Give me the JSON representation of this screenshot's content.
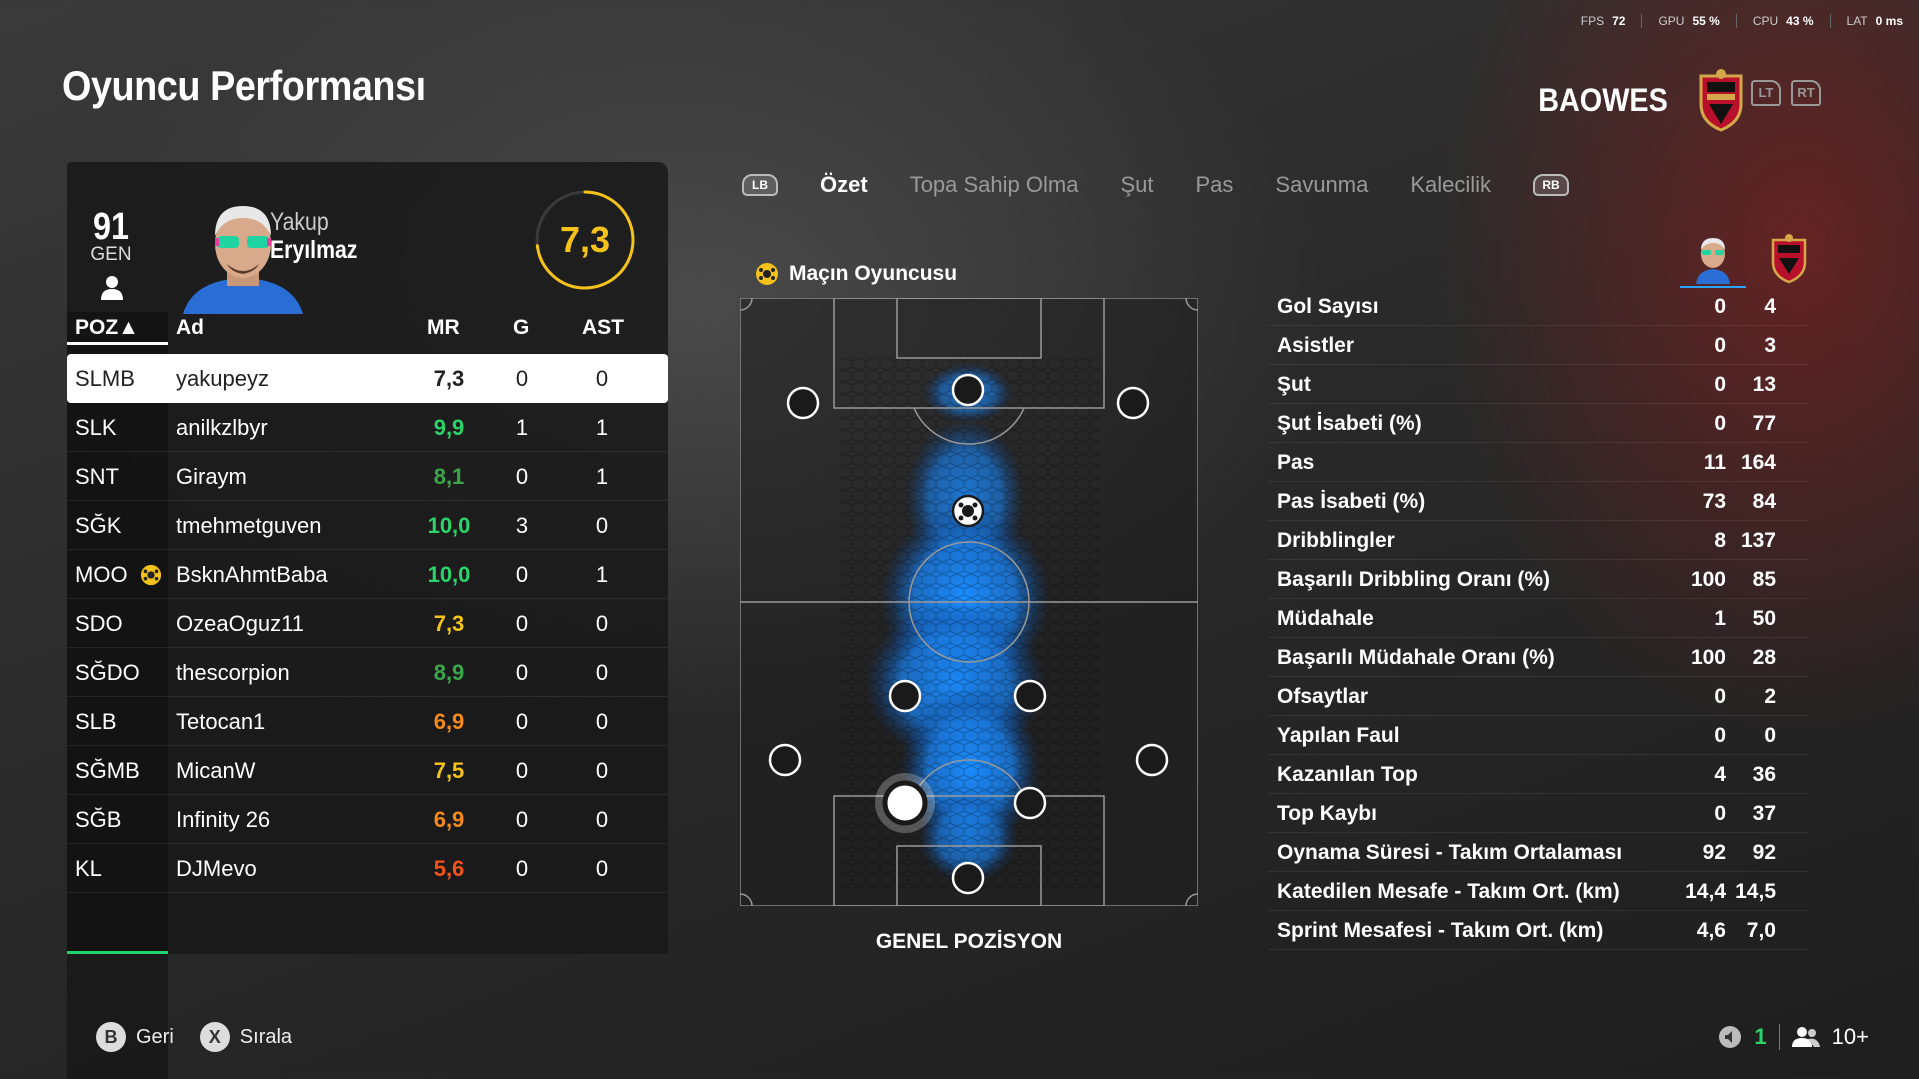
{
  "hud": {
    "fps_label": "FPS",
    "fps_value": "72",
    "gpu_label": "GPU",
    "gpu_value": "55 %",
    "cpu_label": "CPU",
    "cpu_value": "43 %",
    "lat_label": "LAT",
    "lat_value": "0 ms"
  },
  "page_title": "Oyuncu Performansı",
  "team": {
    "name": "BAOWES",
    "lt": "LT",
    "rt": "RT"
  },
  "player_card": {
    "overall": "91",
    "overall_label": "GEN",
    "first_name": "Yakup",
    "last_name": "Eryılmaz",
    "rating": "7,3",
    "rating_fraction": 0.73
  },
  "table": {
    "headers": {
      "pos": "POZ▲",
      "name": "Ad",
      "mr": "MR",
      "g": "G",
      "ast": "AST"
    },
    "rows": [
      {
        "pos": "SLMB",
        "name": "yakupeyz",
        "mr": "7,3",
        "g": "0",
        "ast": "0",
        "mr_color": "#222222"
      },
      {
        "pos": "SLK",
        "name": "anilkzlbyr",
        "mr": "9,9",
        "g": "1",
        "ast": "1",
        "mr_color": "#2ad46a"
      },
      {
        "pos": "SNT",
        "name": "Giraym",
        "mr": "8,1",
        "g": "0",
        "ast": "1",
        "mr_color": "#3aa84a"
      },
      {
        "pos": "SĞK",
        "name": "tmehmetguven",
        "mr": "10,0",
        "g": "3",
        "ast": "0",
        "mr_color": "#2ad46a"
      },
      {
        "pos": "MOO",
        "name": "BsknAhmtBaba",
        "mr": "10,0",
        "g": "0",
        "ast": "1",
        "mr_color": "#2ad46a"
      },
      {
        "pos": "SDO",
        "name": "OzeaOguz11",
        "mr": "7,3",
        "g": "0",
        "ast": "0",
        "mr_color": "#f5c21a"
      },
      {
        "pos": "SĞDO",
        "name": "thescorpion",
        "mr": "8,9",
        "g": "0",
        "ast": "0",
        "mr_color": "#3aa84a"
      },
      {
        "pos": "SLB",
        "name": "Tetocan1",
        "mr": "6,9",
        "g": "0",
        "ast": "0",
        "mr_color": "#f58a1a"
      },
      {
        "pos": "SĞMB",
        "name": "MicanW",
        "mr": "7,5",
        "g": "0",
        "ast": "0",
        "mr_color": "#f5c21a"
      },
      {
        "pos": "SĞB",
        "name": "Infinity 26",
        "mr": "6,9",
        "g": "0",
        "ast": "0",
        "mr_color": "#f58a1a"
      },
      {
        "pos": "KL",
        "name": "DJMevo",
        "mr": "5,6",
        "g": "0",
        "ast": "0",
        "mr_color": "#f5521a"
      }
    ]
  },
  "tabs": {
    "lb": "LB",
    "rb": "RB",
    "items": [
      "Özet",
      "Topa Sahip Olma",
      "Şut",
      "Pas",
      "Savunma",
      "Kalecilik"
    ]
  },
  "motm_label": "Maçın Oyuncusu",
  "pitch_label": "GENEL POZİSYON",
  "stats": [
    {
      "label": "Gol Sayısı",
      "player": "0",
      "team": "4"
    },
    {
      "label": "Asistler",
      "player": "0",
      "team": "3"
    },
    {
      "label": "Şut",
      "player": "0",
      "team": "13"
    },
    {
      "label": "Şut İsabeti (%)",
      "player": "0",
      "team": "77"
    },
    {
      "label": "Pas",
      "player": "11",
      "team": "164"
    },
    {
      "label": "Pas İsabeti (%)",
      "player": "73",
      "team": "84"
    },
    {
      "label": "Dribblingler",
      "player": "8",
      "team": "137"
    },
    {
      "label": "Başarılı Dribbling Oranı (%)",
      "player": "100",
      "team": "85"
    },
    {
      "label": "Müdahale",
      "player": "1",
      "team": "50"
    },
    {
      "label": "Başarılı Müdahale Oranı (%)",
      "player": "100",
      "team": "28"
    },
    {
      "label": "Ofsaytlar",
      "player": "0",
      "team": "2"
    },
    {
      "label": "Yapılan Faul",
      "player": "0",
      "team": "0"
    },
    {
      "label": "Kazanılan Top",
      "player": "4",
      "team": "36"
    },
    {
      "label": "Top Kaybı",
      "player": "0",
      "team": "37"
    },
    {
      "label": "Oynama Süresi - Takım Ortalaması",
      "player": "92",
      "team": "92"
    },
    {
      "label": "Katedilen Mesafe - Takım Ort. (km)",
      "player": "14,4",
      "team": "14,5"
    },
    {
      "label": "Sprint Mesafesi - Takım Ort. (km)",
      "player": "4,6",
      "team": "7,0"
    }
  ],
  "footer": {
    "back_btn": "B",
    "back_label": "Geri",
    "sort_btn": "X",
    "sort_label": "Sırala",
    "count": "1",
    "players": "10+"
  },
  "colors": {
    "accent_green": "#2ad46a",
    "rating_yellow": "#f5c21a",
    "heat_blue": "#1a8cff"
  }
}
